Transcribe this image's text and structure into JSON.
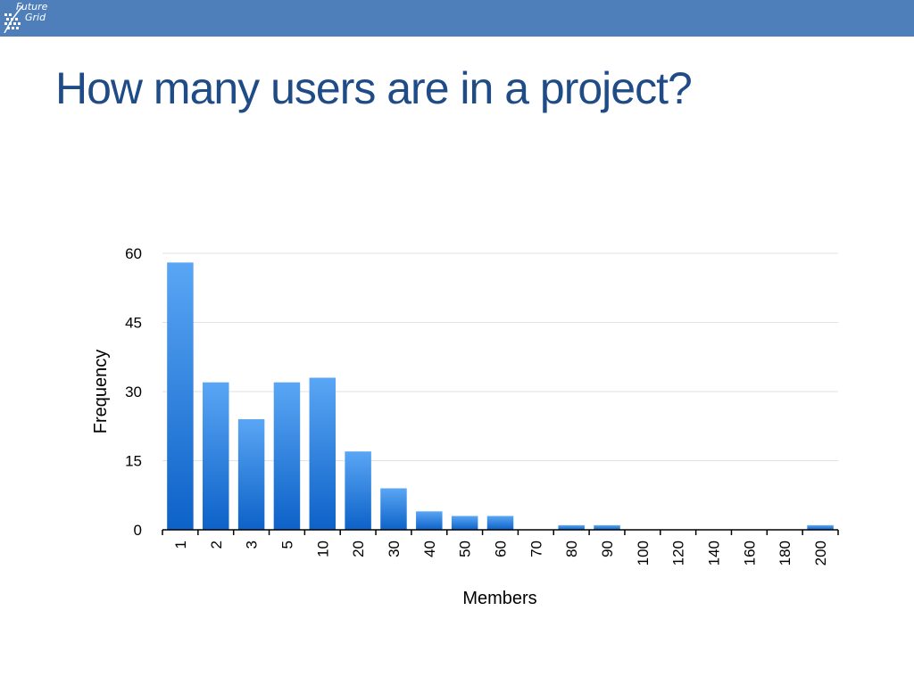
{
  "header": {
    "logo_line1": "Future",
    "logo_line2": "Grid",
    "brand_color": "#4f7fbb"
  },
  "slide": {
    "title": "How many users are in a project?",
    "title_color": "#1f4c86"
  },
  "chart_data": {
    "type": "bar",
    "title": "",
    "xlabel": "Members",
    "ylabel": "Frequency",
    "categories": [
      "1",
      "2",
      "3",
      "5",
      "10",
      "20",
      "30",
      "40",
      "50",
      "60",
      "70",
      "80",
      "90",
      "100",
      "120",
      "140",
      "160",
      "180",
      "200"
    ],
    "values": [
      58,
      32,
      24,
      32,
      33,
      17,
      9,
      4,
      3,
      3,
      0,
      1,
      1,
      0,
      0,
      0,
      0,
      0,
      1
    ],
    "yticks": [
      0,
      15,
      30,
      45,
      60
    ],
    "ylim": [
      0,
      60
    ],
    "grid": true,
    "bar_color_top": "#5aa6f5",
    "bar_color_bottom": "#0d62c8"
  }
}
